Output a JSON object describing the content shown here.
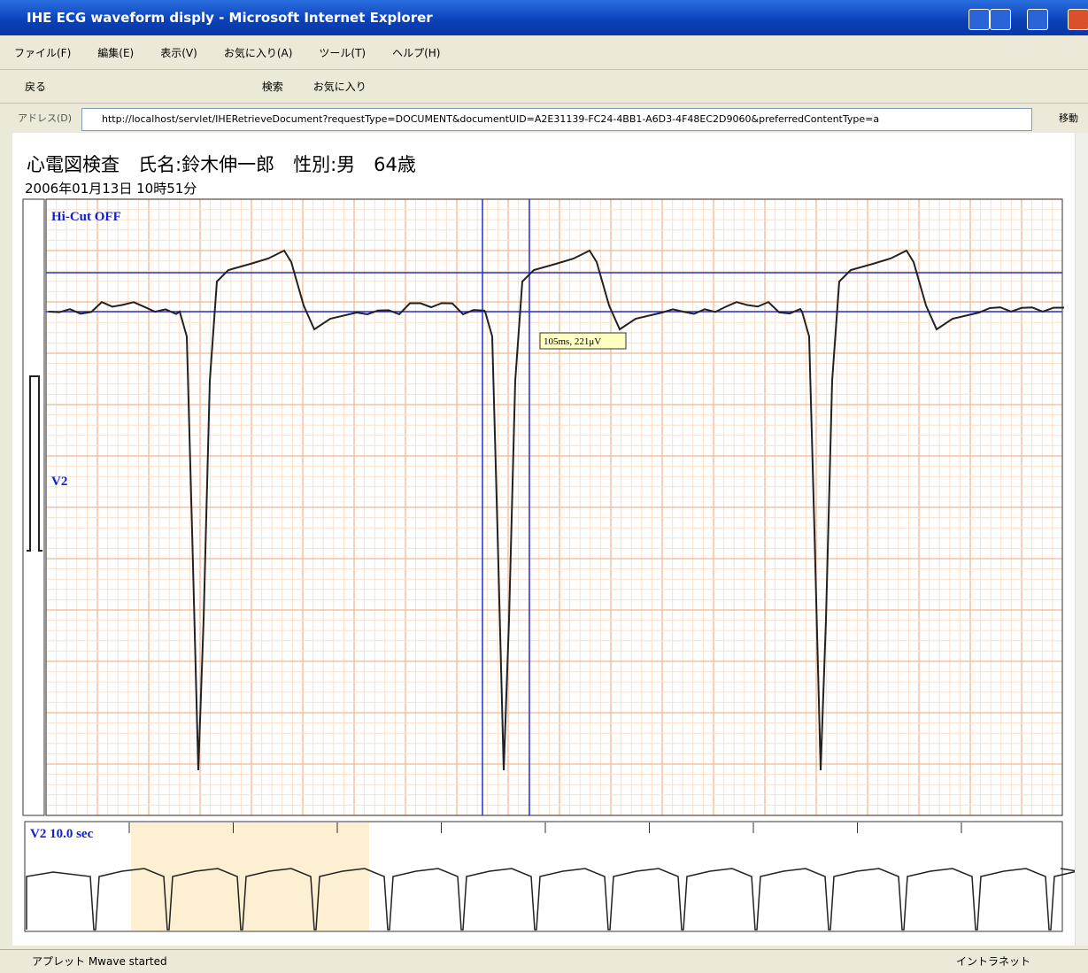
{
  "window": {
    "title": "IHE ECG waveform disply - Microsoft Internet Explorer"
  },
  "menu": [
    "ファイル(F)",
    "編集(E)",
    "表示(V)",
    "お気に入り(A)",
    "ツール(T)",
    "ヘルプ(H)"
  ],
  "toolbar": {
    "back": "戻る",
    "search": "検索",
    "favorites": "お気に入り"
  },
  "address": {
    "label": "アドレス(D)",
    "url": "http://localhost/servlet/IHERetrieveDocument?requestType=DOCUMENT&documentUID=A2E31139-FC24-4BB1-A6D3-4F48EC2D9060&preferredContentType=a",
    "go": "移動"
  },
  "content": {
    "heading": "心電図検査　氏名:鈴木伸一郎　性別:男　64歳",
    "datetime": "2006年01月13日 10時51分",
    "filter": "Hi-Cut OFF",
    "lead": "V2",
    "tooltip": "105ms, 221μV",
    "overview": "V2  10.0 sec"
  },
  "status": {
    "message": "アプレット Mwave started",
    "zone": "イントラネット"
  }
}
